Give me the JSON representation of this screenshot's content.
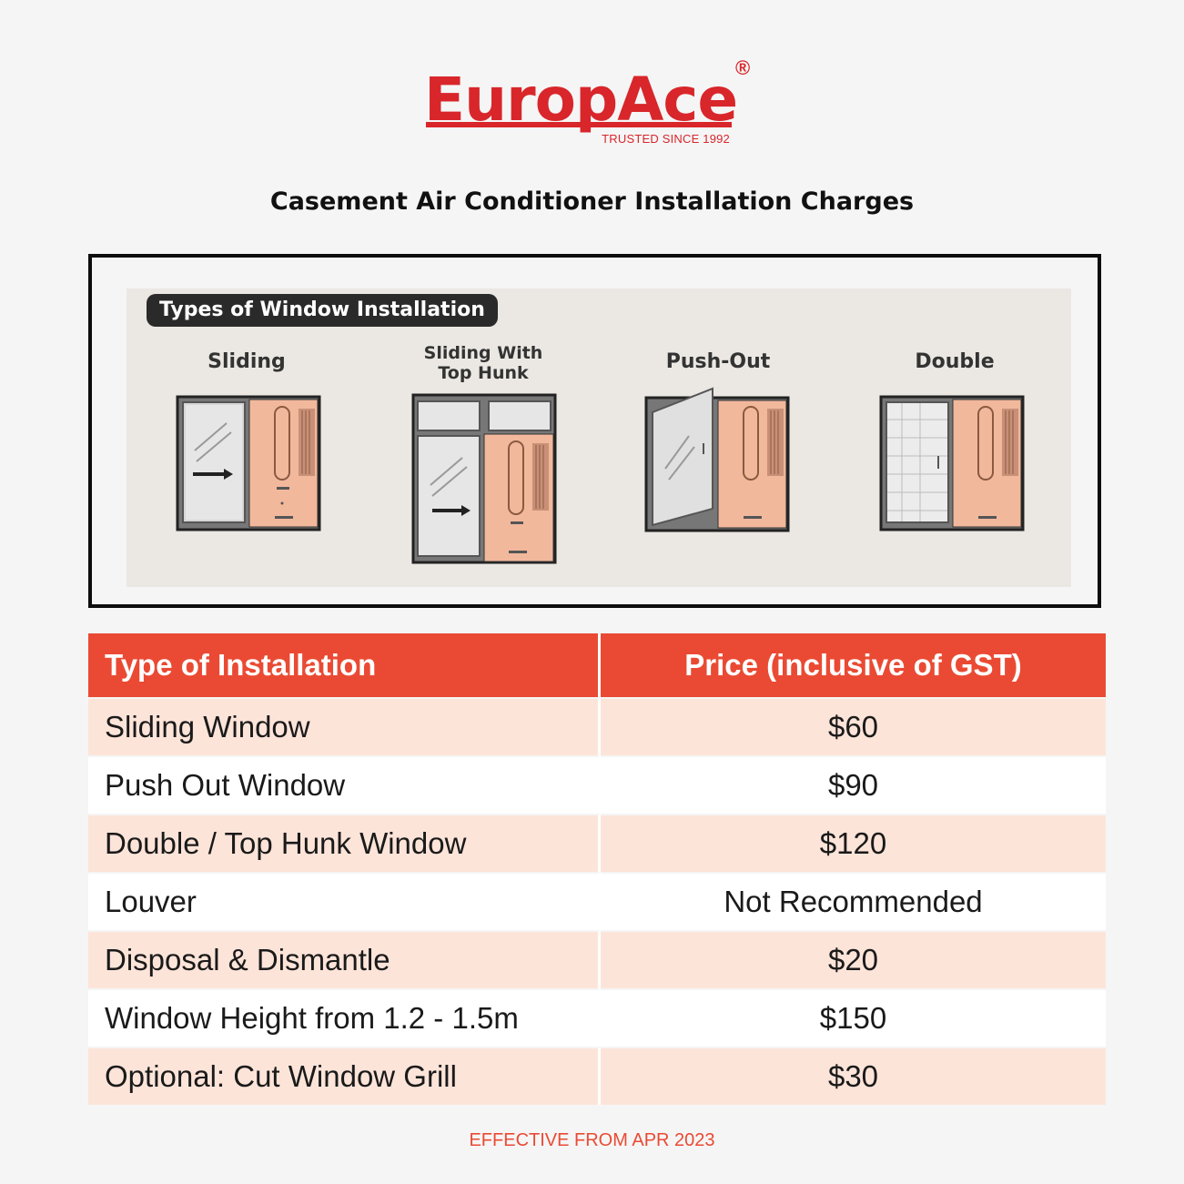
{
  "brand": {
    "name": "EuropAce",
    "registered_mark": "®",
    "tagline": "TRUSTED SINCE 1992",
    "color": "#d8262b"
  },
  "title": "Casement Air Conditioner Installation Charges",
  "window_types": {
    "badge": "Types of Window Installation",
    "items": [
      {
        "label": "Sliding"
      },
      {
        "label_line1": "Sliding With",
        "label_line2": "Top Hunk"
      },
      {
        "label": "Push-Out"
      },
      {
        "label": "Double"
      }
    ]
  },
  "price_table": {
    "header_color": "#ea4a33",
    "columns": [
      "Type of Installation",
      "Price (inclusive of GST)"
    ],
    "rows": [
      {
        "type": "Sliding Window",
        "price": "$60"
      },
      {
        "type": "Push Out Window",
        "price": "$90"
      },
      {
        "type": "Double / Top Hunk Window",
        "price": "$120"
      },
      {
        "type": "Louver",
        "price": "Not Recommended"
      },
      {
        "type": "Disposal & Dismantle",
        "price": "$20"
      },
      {
        "type": "Window Height from 1.2 - 1.5m",
        "price": "$150"
      },
      {
        "type": "Optional: Cut Window Grill",
        "price": "$30"
      }
    ]
  },
  "footer": "EFFECTIVE FROM APR 2023"
}
